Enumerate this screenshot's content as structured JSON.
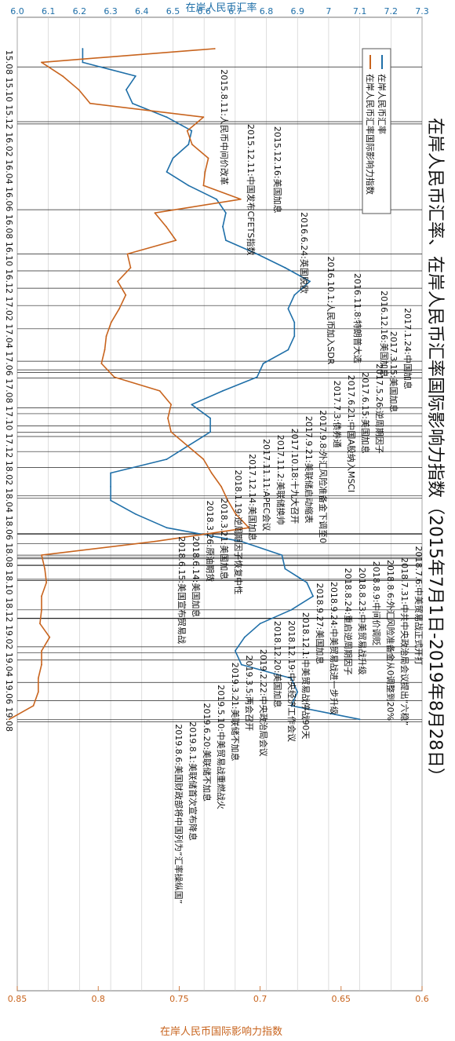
{
  "chart_data": {
    "type": "line",
    "title": "在岸人民币汇率、在岸人民币汇率国际影响力指数（2015年7月1日-2019年8月28日）",
    "top_axis": {
      "label": "在岸人民币汇率",
      "ticks": [
        "6.0",
        "6.1",
        "6.2",
        "6.3",
        "6.4",
        "6.5",
        "6.6",
        "6.7",
        "6.8",
        "6.9",
        "7",
        "7.1",
        "7.2",
        "7.3"
      ],
      "range": [
        6.0,
        7.3
      ]
    },
    "bottom_axis": {
      "label": "在岸人民币国际影响力指数",
      "ticks": [
        "0.6",
        "0.65",
        "0.7",
        "0.75",
        "0.8",
        "0.85"
      ],
      "range": [
        0.6,
        0.85
      ],
      "reversed": true
    },
    "date_ticks": [
      "15.08",
      "15.10",
      "15.12",
      "16.02",
      "16.04",
      "16.06",
      "16.08",
      "16.10",
      "16.12",
      "17.02",
      "17.04",
      "17.06",
      "17.08",
      "17.10",
      "17.12",
      "18.02",
      "18.04",
      "18.06",
      "18.08",
      "18.10",
      "18.12",
      "19.02",
      "19.04",
      "19.06",
      "19.08"
    ],
    "legend": [
      "在岸人民币汇率",
      "在岸人民币汇率国际影响力指数"
    ],
    "series": [
      {
        "name": "在岸人民币汇率",
        "color": "#1f6fa8",
        "x": [
          "15.07",
          "15.08",
          "15.09",
          "15.10",
          "15.11",
          "15.12",
          "16.01",
          "16.02",
          "16.03",
          "16.04",
          "16.05",
          "16.06",
          "16.07",
          "16.08",
          "16.09",
          "16.10",
          "16.11",
          "16.12",
          "17.01",
          "17.02",
          "17.03",
          "17.04",
          "17.05",
          "17.06",
          "17.07",
          "17.08",
          "17.09",
          "17.10",
          "17.11",
          "17.12",
          "18.01",
          "18.02",
          "18.03",
          "18.04",
          "18.05",
          "18.06",
          "18.07",
          "18.08",
          "18.09",
          "18.10",
          "18.11",
          "18.12",
          "19.01",
          "19.02",
          "19.03",
          "19.04",
          "19.05",
          "19.06",
          "19.07",
          "19.08"
        ],
        "y": [
          6.21,
          6.21,
          6.38,
          6.35,
          6.37,
          6.48,
          6.56,
          6.55,
          6.5,
          6.48,
          6.55,
          6.64,
          6.67,
          6.66,
          6.67,
          6.77,
          6.86,
          6.94,
          6.89,
          6.87,
          6.89,
          6.89,
          6.87,
          6.79,
          6.77,
          6.66,
          6.56,
          6.62,
          6.62,
          6.55,
          6.48,
          6.3,
          6.3,
          6.3,
          6.38,
          6.48,
          6.72,
          6.85,
          6.86,
          6.93,
          6.95,
          6.88,
          6.78,
          6.73,
          6.7,
          6.72,
          6.88,
          6.9,
          6.88,
          7.1
        ]
      },
      {
        "name": "在岸人民币汇率国际影响力指数",
        "color": "#c8641e",
        "x": [
          "15.07",
          "15.08",
          "15.09",
          "15.10",
          "15.11",
          "15.12",
          "16.01",
          "16.02",
          "16.03",
          "16.04",
          "16.05",
          "16.06",
          "16.07",
          "16.08",
          "16.09",
          "16.10",
          "16.11",
          "16.12",
          "17.01",
          "17.02",
          "17.03",
          "17.04",
          "17.05",
          "17.06",
          "17.07",
          "17.08",
          "17.09",
          "17.10",
          "17.11",
          "17.12",
          "18.01",
          "18.02",
          "18.03",
          "18.04",
          "18.05",
          "18.06",
          "18.07",
          "18.08",
          "18.09",
          "18.10",
          "18.11",
          "18.12",
          "19.01",
          "19.02",
          "19.03",
          "19.04",
          "19.05",
          "19.06",
          "19.07",
          "19.08"
        ],
        "y": [
          0.728,
          0.835,
          0.822,
          0.812,
          0.805,
          0.735,
          0.745,
          0.742,
          0.732,
          0.734,
          0.735,
          0.712,
          0.765,
          0.758,
          0.752,
          0.782,
          0.78,
          0.788,
          0.783,
          0.787,
          0.792,
          0.795,
          0.796,
          0.798,
          0.79,
          0.762,
          0.755,
          0.757,
          0.755,
          0.745,
          0.735,
          0.73,
          0.724,
          0.72,
          0.715,
          0.707,
          0.765,
          0.835,
          0.833,
          0.832,
          0.835,
          0.835,
          0.836,
          0.83,
          0.835,
          0.835,
          0.837,
          0.837,
          0.84,
          0.855
        ]
      }
    ],
    "annotations": [
      {
        "date": "15.08.11",
        "text": "2015.8.11:人民币中间价改革"
      },
      {
        "date": "15.12.11",
        "text": "2015.12.11:中国发布CFETS指数"
      },
      {
        "date": "15.12.16",
        "text": "2015.12.16:美国加息"
      },
      {
        "date": "16.06.24",
        "text": "2016.6.24:英国脱欧"
      },
      {
        "date": "16.10.01",
        "text": "2016.10.1:人民币加入SDR"
      },
      {
        "date": "16.11.08",
        "text": "2016.11.8:特朗普大选"
      },
      {
        "date": "16.12.16",
        "text": "2016.12.16:美国加息"
      },
      {
        "date": "17.01.24",
        "text": "2017.1.24:中国加息"
      },
      {
        "date": "17.03.15",
        "text": "2017.3.15:美国加息"
      },
      {
        "date": "17.05.26",
        "text": "2017.5.26:逆周期因子"
      },
      {
        "date": "17.06.15",
        "text": "2017.6.15:美国加息"
      },
      {
        "date": "17.06.21",
        "text": "2017.6.21:中国A股纳入MSCI"
      },
      {
        "date": "17.07.03",
        "text": "2017.7.3:债券通"
      },
      {
        "date": "17.09.08",
        "text": "2017.9.8:外汇风险准备金下调至0"
      },
      {
        "date": "17.09.21",
        "text": "2017.9.21:美联储启动缩表"
      },
      {
        "date": "17.10.18",
        "text": "2017.10.18:十九大召开"
      },
      {
        "date": "17.11.02",
        "text": "2017.11.2:美联储换帅"
      },
      {
        "date": "17.11.11",
        "text": "2017.11.11:APEC会议"
      },
      {
        "date": "17.12.14",
        "text": "2017.12.14:美国加息"
      },
      {
        "date": "18.01.19",
        "text": "2018.1.19:逆周期因子恢复中性"
      },
      {
        "date": "18.03.21",
        "text": "2018.3.21:美国加息"
      },
      {
        "date": "18.03.26",
        "text": "2018.3.26:原油期货"
      },
      {
        "date": "18.06.14",
        "text": "2018.6.14:美国加息"
      },
      {
        "date": "18.06.15",
        "text": "2018.6.15:美国宣布贸易战"
      },
      {
        "date": "18.07.06",
        "text": "2018.7.6:中美贸易战正式开打"
      },
      {
        "date": "18.07.31",
        "text": "2018.7.31:中共中央政治局会议提出“六稳”"
      },
      {
        "date": "18.08.06",
        "text": "2018.8.6:外汇风险准备金从0调整到20%"
      },
      {
        "date": "18.08.09",
        "text": "2018.8.9:中间价调贬"
      },
      {
        "date": "18.08.23",
        "text": "2018.8.23:中美贸易战升级"
      },
      {
        "date": "18.08.24",
        "text": "2018.8.24:重启逆周期因子"
      },
      {
        "date": "18.09.24",
        "text": "2018.9.24:中美贸易战进一步升级"
      },
      {
        "date": "18.09.27",
        "text": "2018.9.27:美国加息"
      },
      {
        "date": "18.12.01",
        "text": "2018.12.1:中美贸易战停战90天"
      },
      {
        "date": "18.12.19",
        "text": "2018.12.19:中央经济工作会议"
      },
      {
        "date": "18.12.20",
        "text": "2018.12.20:美国加息"
      },
      {
        "date": "19.02.22",
        "text": "2019.2.22:中央政治局会议"
      },
      {
        "date": "19.03.05",
        "text": "2019.3.5:两会召开"
      },
      {
        "date": "19.03.21",
        "text": "2019.3.21:美联储不加息"
      },
      {
        "date": "19.05.10",
        "text": "2019.5.10:中美贸易战重燃战火"
      },
      {
        "date": "19.06.20",
        "text": "2019.6.20:美联储不加息"
      },
      {
        "date": "19.08.01",
        "text": "2019.8.1:美联储首次宣布降息"
      },
      {
        "date": "19.08.06",
        "text": "2019.8.6:美国财政部将中国列为“汇率操纵国”"
      }
    ]
  }
}
